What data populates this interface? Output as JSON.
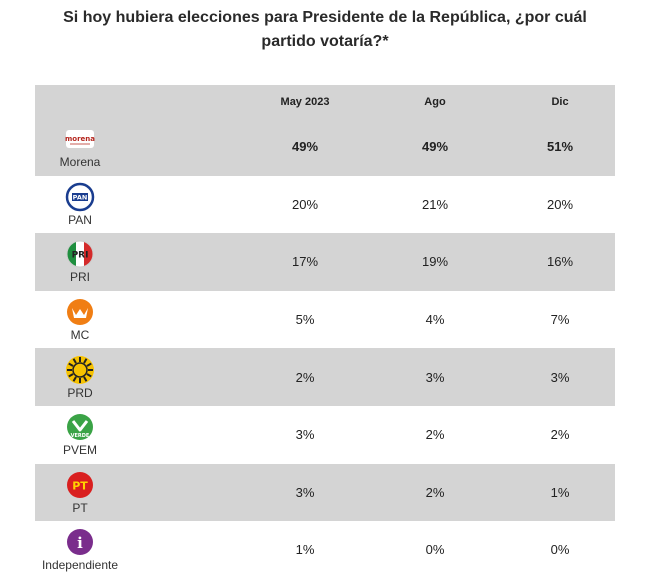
{
  "title_line1": "Si hoy hubiera elecciones para Presidente de la República, ¿por cuál",
  "title_line2": "partido votaría?*",
  "chart_data": {
    "type": "table",
    "columns": [
      "",
      "May 2023",
      "Ago",
      "Dic"
    ],
    "rows": [
      {
        "party": "Morena",
        "logo_text": "morena",
        "values": [
          "49%",
          "49%",
          "51%"
        ]
      },
      {
        "party": "PAN",
        "logo_text": "PAN",
        "values": [
          "20%",
          "21%",
          "20%"
        ]
      },
      {
        "party": "PRI",
        "logo_text": "PRI",
        "values": [
          "17%",
          "19%",
          "16%"
        ]
      },
      {
        "party": "MC",
        "logo_text": "",
        "values": [
          "5%",
          "4%",
          "7%"
        ]
      },
      {
        "party": "PRD",
        "logo_text": "",
        "values": [
          "2%",
          "3%",
          "3%"
        ]
      },
      {
        "party": "PVEM",
        "logo_text": "VERDE",
        "values": [
          "3%",
          "2%",
          "2%"
        ]
      },
      {
        "party": "PT",
        "logo_text": "PT",
        "values": [
          "3%",
          "2%",
          "1%"
        ]
      },
      {
        "party": "Independiente",
        "logo_text": "i",
        "values": [
          "1%",
          "0%",
          "0%"
        ]
      }
    ]
  },
  "colors": {
    "header_bg": "#d4d4d4",
    "morena": "#b5261e",
    "pan": "#1a3d8f",
    "pri_green": "#1f8f3f",
    "pri_red": "#d42a2a",
    "mc": "#f07e14",
    "prd": "#f6c200",
    "pvem": "#3aa346",
    "pt": "#d91f1f",
    "independiente": "#7a2d8c"
  }
}
